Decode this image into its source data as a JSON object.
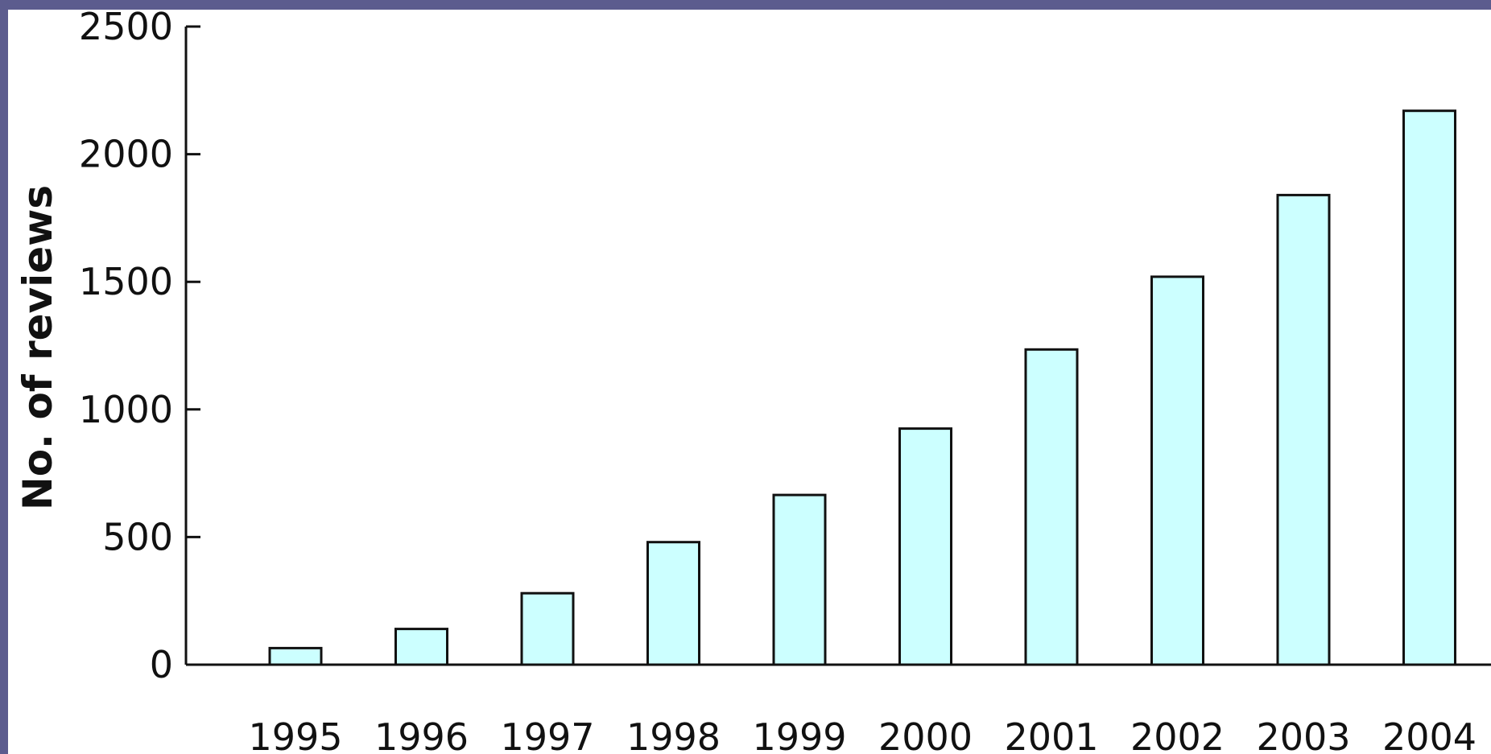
{
  "chart_data": {
    "type": "bar",
    "title": "",
    "xlabel": "",
    "ylabel": "No. of reviews",
    "categories": [
      "1995",
      "1996",
      "1997",
      "1998",
      "1999",
      "2000",
      "2001",
      "2002",
      "2003",
      "2004"
    ],
    "values": [
      65,
      140,
      280,
      480,
      665,
      925,
      1235,
      1520,
      1840,
      2170
    ],
    "ylim": [
      0,
      2500
    ],
    "yticks": [
      "0",
      "500",
      "1000",
      "1500",
      "2000",
      "2500"
    ],
    "grid": false,
    "legend": "none",
    "colors": {
      "bar_fill": "#ccffff",
      "bar_stroke": "#111111",
      "frame": "#5c5c8e"
    }
  }
}
